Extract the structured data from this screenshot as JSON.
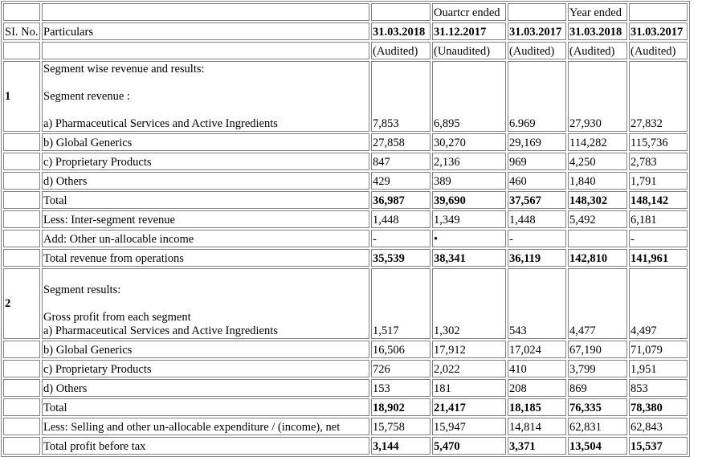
{
  "header": {
    "row1": {
      "quarter_ended": "Ouartcr ended",
      "year_ended": "Year ended"
    },
    "row2": {
      "sl_no": "SI. No.",
      "particulars": "Particulars",
      "dates": [
        "31.03.2018",
        "31.12.2017",
        "31.03.2017",
        "31.03.2018",
        "31.03.2017"
      ]
    },
    "row3": {
      "statuses": [
        "(Audited)",
        "(Unaudited)",
        "(Audited)",
        "(Audited)",
        "(Audited)"
      ]
    }
  },
  "section1": {
    "number": "1",
    "heading": "Segment wise revenue and results:",
    "subheading": "Segment revenue :",
    "rows": [
      {
        "label": "a) Pharmaceutical Services and Active Ingredients",
        "values": [
          "7,853",
          "6,895",
          "6.969",
          "27,930",
          "27,832"
        ],
        "bold": false
      },
      {
        "label": "b) Global Generics",
        "values": [
          "27,858",
          "30,270",
          "29,169",
          "114,282",
          "115,736"
        ],
        "bold": false
      },
      {
        "label": "c) Proprietary Products",
        "values": [
          "847",
          "2,136",
          "969",
          "4,250",
          "2,783"
        ],
        "bold": false
      },
      {
        "label": "d) Others",
        "values": [
          "429",
          "389",
          "460",
          "1,840",
          "1,791"
        ],
        "bold": false
      },
      {
        "label": "Total",
        "values": [
          "36,987",
          "39,690",
          "37,567",
          "148,302",
          "148,142"
        ],
        "bold": true
      },
      {
        "label": "Less: Inter-segment revenue",
        "values": [
          "1,448",
          "1,349",
          "1,448",
          "5,492",
          "6,181"
        ],
        "bold": false
      },
      {
        "label": "Add: Other un-allocable income",
        "values": [
          "-",
          "•",
          "-",
          "",
          "-"
        ],
        "bold": false
      },
      {
        "label": "Total revenue from operations",
        "values": [
          "35,539",
          "38,341",
          "36,119",
          "142,810",
          "141,961"
        ],
        "bold": true
      }
    ]
  },
  "section2": {
    "number": "2",
    "heading": "Segment results:",
    "subheading": "Gross profit from each segment",
    "rows": [
      {
        "label": "a) Pharmaceutical Services and Active Ingredients",
        "values": [
          "1,517",
          "1,302",
          "543",
          "4,477",
          "4,497"
        ],
        "bold": false
      },
      {
        "label": "b) Global Generics",
        "values": [
          "16,506",
          "17,912",
          "17,024",
          "67,190",
          "71,079"
        ],
        "bold": false
      },
      {
        "label": "c) Proprietary Products",
        "values": [
          "726",
          "2,022",
          "410",
          "3,799",
          "1,951"
        ],
        "bold": false
      },
      {
        "label": "d) Others",
        "values": [
          "153",
          "181",
          "208",
          "869",
          "853"
        ],
        "bold": false
      },
      {
        "label": "Total",
        "values": [
          "18,902",
          "21,417",
          "18,185",
          "76,335",
          "78,380"
        ],
        "bold": true
      },
      {
        "label": "Less: Selling and other un-allocable expenditure / (income), net",
        "values": [
          "15,758",
          "15,947",
          "14,814",
          "62,831",
          "62,843"
        ],
        "bold": false
      },
      {
        "label": "Total profit before tax",
        "values": [
          "3,144",
          "5,470",
          "3,371",
          "13,504",
          "15,537"
        ],
        "bold": true
      }
    ]
  }
}
